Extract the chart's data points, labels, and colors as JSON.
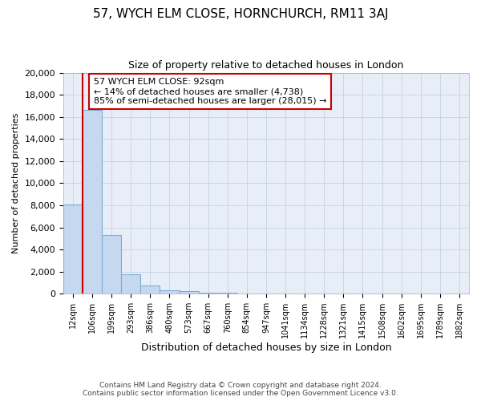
{
  "title": "57, WYCH ELM CLOSE, HORNCHURCH, RM11 3AJ",
  "subtitle": "Size of property relative to detached houses in London",
  "xlabel": "Distribution of detached houses by size in London",
  "ylabel": "Number of detached properties",
  "bin_labels": [
    "12sqm",
    "106sqm",
    "199sqm",
    "293sqm",
    "386sqm",
    "480sqm",
    "573sqm",
    "667sqm",
    "760sqm",
    "854sqm",
    "947sqm",
    "1041sqm",
    "1134sqm",
    "1228sqm",
    "1321sqm",
    "1415sqm",
    "1508sqm",
    "1602sqm",
    "1695sqm",
    "1789sqm",
    "1882sqm"
  ],
  "bar_values": [
    8100,
    16600,
    5300,
    1750,
    750,
    300,
    200,
    100,
    60,
    40,
    30,
    25,
    20,
    15,
    12,
    10,
    8,
    6,
    5,
    4,
    3
  ],
  "bar_color": "#c5d8f0",
  "bar_edge_color": "#7aadd4",
  "vline_color": "#cc0000",
  "vline_x": 0.5,
  "annotation_text_line1": "57 WYCH ELM CLOSE: 92sqm",
  "annotation_text_line2": "← 14% of detached houses are smaller (4,738)",
  "annotation_text_line3": "85% of semi-detached houses are larger (28,015) →",
  "annotation_box_color": "#ffffff",
  "annotation_box_edge": "#cc0000",
  "footer_line1": "Contains HM Land Registry data © Crown copyright and database right 2024.",
  "footer_line2": "Contains public sector information licensed under the Open Government Licence v3.0.",
  "background_color": "#e8eef8",
  "grid_color": "#c8d0e0",
  "ylim": [
    0,
    20000
  ],
  "yticks": [
    0,
    2000,
    4000,
    6000,
    8000,
    10000,
    12000,
    14000,
    16000,
    18000,
    20000
  ],
  "title_fontsize": 11,
  "subtitle_fontsize": 9,
  "xlabel_fontsize": 9,
  "ylabel_fontsize": 8,
  "tick_fontsize": 8,
  "xtick_fontsize": 7
}
